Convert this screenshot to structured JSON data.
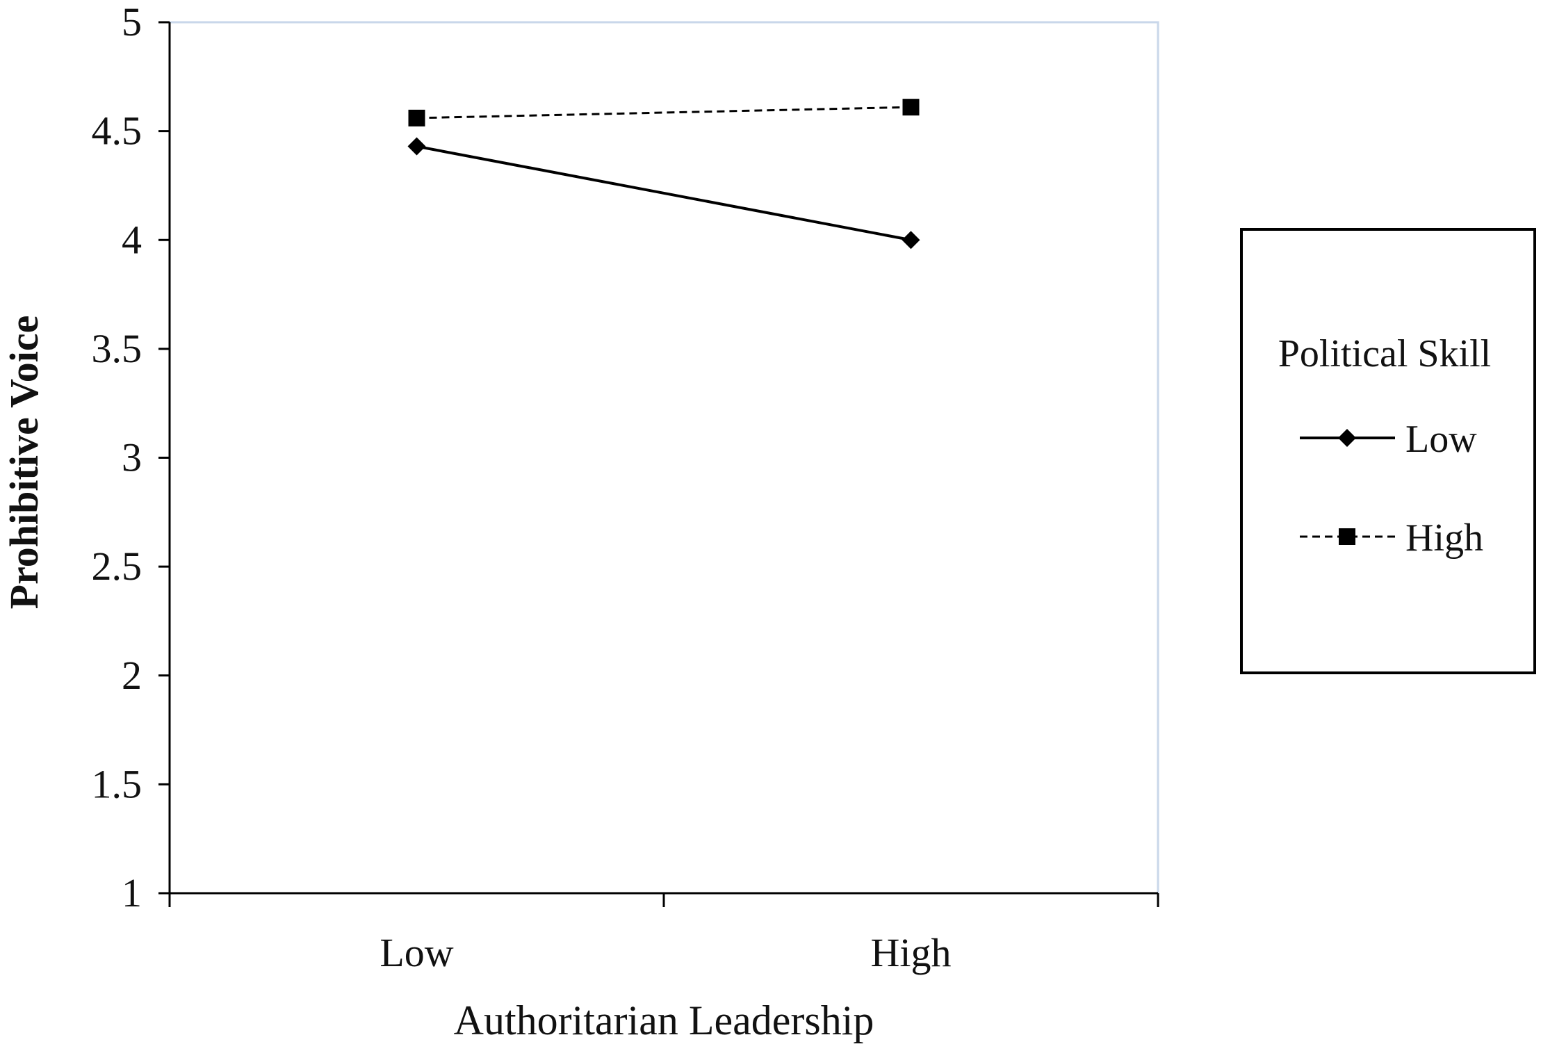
{
  "chart_data": {
    "type": "line",
    "xlabel": "Authoritarian Leadership",
    "ylabel": "Prohibitive Voice",
    "categories": [
      "Low",
      "High"
    ],
    "ylim": [
      1,
      5
    ],
    "yticks": [
      "1",
      "1.5",
      "2",
      "2.5",
      "3",
      "3.5",
      "4",
      "4.5",
      "5"
    ],
    "grid": false,
    "legend": {
      "title": "Political Skill",
      "placement": "right"
    },
    "series": [
      {
        "name": "Low",
        "values": [
          4.43,
          4.0
        ],
        "line_style": "solid",
        "marker": "diamond",
        "color": "#000000"
      },
      {
        "name": "High",
        "values": [
          4.56,
          4.61
        ],
        "line_style": "dashed",
        "marker": "square",
        "color": "#000000"
      }
    ],
    "plot_border_color": "#c9d7ea"
  }
}
